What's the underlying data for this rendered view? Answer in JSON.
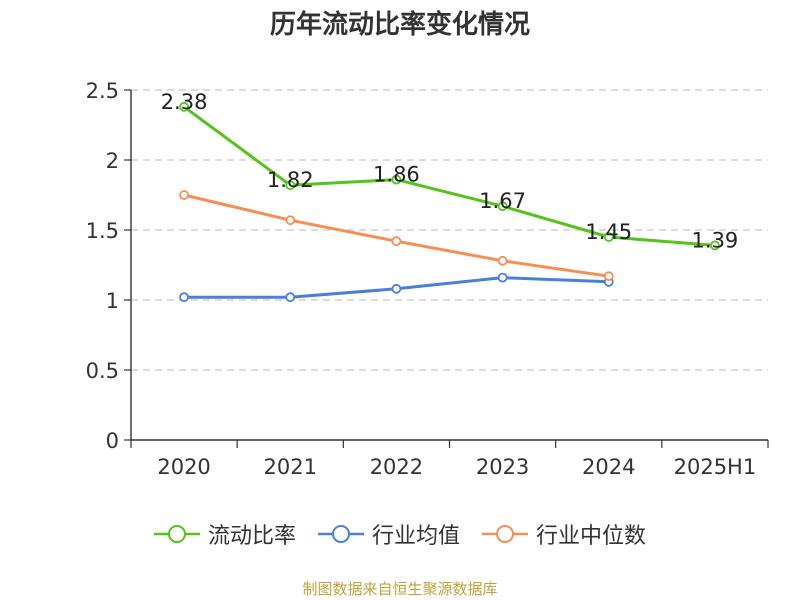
{
  "chart_data": {
    "type": "line",
    "title": "历年流动比率变化情况",
    "categories": [
      "2020",
      "2021",
      "2022",
      "2023",
      "2024",
      "2025H1"
    ],
    "ylim": [
      0,
      2.5
    ],
    "yticks": [
      "0",
      "0.5",
      "1",
      "1.5",
      "2",
      "2.5"
    ],
    "grid": true,
    "legend_position": "bottom",
    "series": [
      {
        "name": "流动比率",
        "color": "#52c41a",
        "show_labels": true,
        "values": [
          2.38,
          1.82,
          1.86,
          1.67,
          1.45,
          1.39
        ],
        "labels": [
          "2.38",
          "1.82",
          "1.86",
          "1.67",
          "1.45",
          "1.39"
        ]
      },
      {
        "name": "行业均值",
        "color": "#4a7fdc",
        "show_labels": false,
        "values": [
          1.02,
          1.02,
          1.08,
          1.16,
          1.13,
          null
        ]
      },
      {
        "name": "行业中位数",
        "color": "#fb8c55",
        "show_labels": false,
        "values": [
          1.75,
          1.57,
          1.42,
          1.28,
          1.17,
          null
        ]
      }
    ]
  },
  "source_note": "制图数据来自恒生聚源数据库"
}
